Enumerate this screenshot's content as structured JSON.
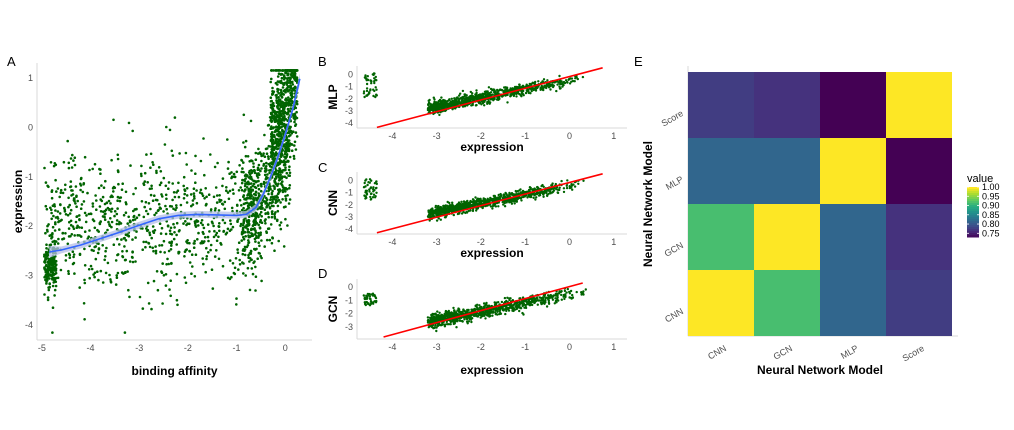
{
  "chart_data": [
    {
      "panel": "A",
      "type": "scatter",
      "xlabel": "binding affinity",
      "ylabel": "expression",
      "xlim": [
        -5.1,
        0.55
      ],
      "ylim": [
        -4.3,
        1.3
      ],
      "xticks": [
        "-5",
        "-4",
        "-3",
        "-2",
        "-1",
        "0"
      ],
      "yticks": [
        "1",
        "0",
        "-1",
        "-2",
        "-3",
        "-4"
      ],
      "point_color": "#006400",
      "smooth_color": "#3366ff",
      "band_color": "#b4bde6",
      "smooth": {
        "x": [
          -4.85,
          -4.6,
          -4.2,
          -3.8,
          -3.4,
          -3.0,
          -2.6,
          -2.2,
          -1.8,
          -1.4,
          -1.0,
          -0.8,
          -0.6,
          -0.45,
          -0.3,
          -0.15,
          0.0,
          0.15,
          0.3
        ],
        "y": [
          -2.52,
          -2.48,
          -2.38,
          -2.25,
          -2.12,
          -1.98,
          -1.85,
          -1.78,
          -1.76,
          -1.77,
          -1.78,
          -1.76,
          -1.62,
          -1.35,
          -1.0,
          -0.6,
          -0.15,
          0.35,
          0.98
        ]
      },
      "clusters": [
        {
          "n": 180,
          "x": [
            -4.95,
            -4.7
          ],
          "y_center": -2.8,
          "y_spread": 0.35
        },
        {
          "n": 60,
          "x": [
            -4.95,
            -4.7
          ],
          "y_center": -1.9,
          "y_spread": 1.3
        },
        {
          "n": 800,
          "x": [
            -4.7,
            -0.6
          ],
          "y_center": -1.9,
          "y_spread": 1.1
        },
        {
          "n": 650,
          "x": [
            -0.9,
            0.1
          ],
          "y_center": -1.6,
          "y_spread": 0.9
        },
        {
          "n": 550,
          "x": [
            -0.3,
            0.25
          ],
          "y_center": -0.5,
          "y_spread": 0.9
        }
      ]
    },
    {
      "panel": "B",
      "type": "scatter",
      "ylabel": "MLP",
      "xlabel": "expression",
      "xlim": [
        -4.8,
        1.3
      ],
      "ylim": [
        -4.4,
        0.7
      ],
      "xticks": [
        "-4",
        "-3",
        "-2",
        "-1",
        "0",
        "1"
      ],
      "yticks": [
        "0",
        "-1",
        "-2",
        "-3",
        "-4"
      ],
      "point_color": "#006400",
      "fit_color": "#ff0000",
      "fit": {
        "x": [
          -4.35,
          0.75
        ],
        "y": [
          -4.35,
          0.55
        ]
      },
      "main_cloud": {
        "n": 900,
        "x": [
          -3.2,
          0.4
        ],
        "slope": 0.72,
        "intercept": -0.5,
        "spread": 0.35
      },
      "outlier_cloud": {
        "n": 45,
        "x": [
          -4.65,
          -4.35
        ],
        "y": [
          -1.9,
          0.1
        ]
      }
    },
    {
      "panel": "C",
      "type": "scatter",
      "ylabel": "CNN",
      "xlabel": "expression",
      "xlim": [
        -4.8,
        1.3
      ],
      "ylim": [
        -4.4,
        0.7
      ],
      "xticks": [
        "-4",
        "-3",
        "-2",
        "-1",
        "0",
        "1"
      ],
      "yticks": [
        "0",
        "-1",
        "-2",
        "-3",
        "-4"
      ],
      "point_color": "#006400",
      "fit_color": "#ff0000",
      "fit": {
        "x": [
          -4.35,
          0.75
        ],
        "y": [
          -4.3,
          0.55
        ]
      },
      "main_cloud": {
        "n": 900,
        "x": [
          -3.2,
          0.4
        ],
        "slope": 0.72,
        "intercept": -0.45,
        "spread": 0.32
      },
      "outlier_cloud": {
        "n": 45,
        "x": [
          -4.65,
          -4.35
        ],
        "y": [
          -1.6,
          0.1
        ]
      }
    },
    {
      "panel": "D",
      "type": "scatter",
      "ylabel": "GCN",
      "xlabel": "expression",
      "xlim": [
        -4.8,
        1.3
      ],
      "ylim": [
        -3.9,
        0.6
      ],
      "xticks": [
        "-4",
        "-3",
        "-2",
        "-1",
        "0",
        "1"
      ],
      "yticks": [
        "0",
        "-1",
        "-2",
        "-3"
      ],
      "point_color": "#006400",
      "fit_color": "#ff0000",
      "fit": {
        "x": [
          -4.2,
          0.3
        ],
        "y": [
          -3.75,
          0.3
        ]
      },
      "main_cloud": {
        "n": 900,
        "x": [
          -3.2,
          0.4
        ],
        "slope": 0.65,
        "intercept": -0.55,
        "spread": 0.35
      },
      "outlier_cloud": {
        "n": 40,
        "x": [
          -4.65,
          -4.35
        ],
        "y": [
          -1.4,
          -0.5
        ]
      }
    },
    {
      "panel": "E",
      "type": "heatmap",
      "xlabel": "Neural Network Model",
      "ylabel": "Neural Network Model",
      "x_categories": [
        "CNN",
        "GCN",
        "MLP",
        "Score"
      ],
      "y_categories": [
        "CNN",
        "GCN",
        "MLP",
        "Score"
      ],
      "values": [
        [
          1.0,
          0.92,
          0.82,
          0.78
        ],
        [
          0.92,
          1.0,
          0.82,
          0.77
        ],
        [
          0.82,
          0.82,
          1.0,
          0.73
        ],
        [
          0.78,
          0.77,
          0.73,
          1.0
        ]
      ],
      "legend_title": "value",
      "legend_ticks": [
        "1.00",
        "0.95",
        "0.90",
        "0.85",
        "0.80",
        "0.75"
      ],
      "legend_range": [
        0.73,
        1.0
      ],
      "colormap": "viridis"
    }
  ]
}
